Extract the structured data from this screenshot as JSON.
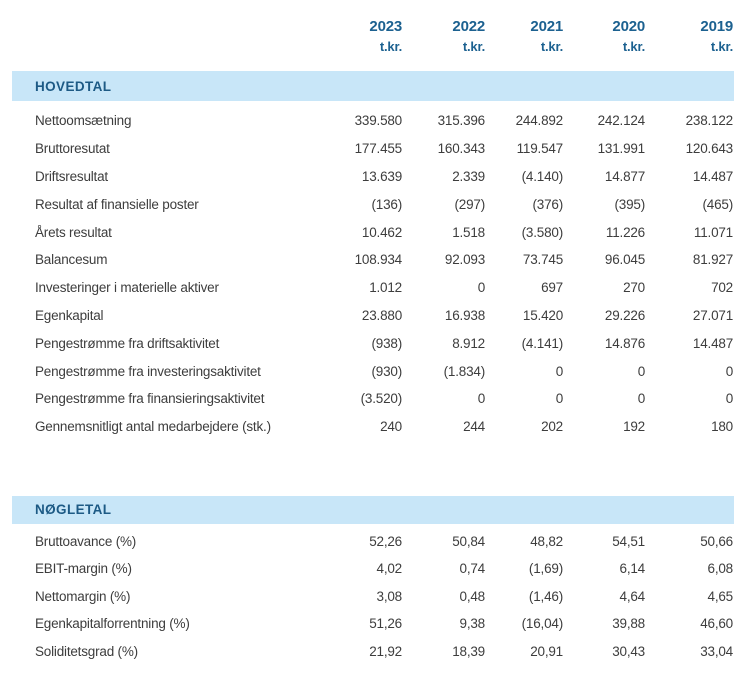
{
  "columns": [
    {
      "year": "2023",
      "unit": "t.kr."
    },
    {
      "year": "2022",
      "unit": "t.kr."
    },
    {
      "year": "2021",
      "unit": "t.kr."
    },
    {
      "year": "2020",
      "unit": "t.kr."
    },
    {
      "year": "2019",
      "unit": "t.kr."
    }
  ],
  "hovedtal": {
    "title": "HOVEDTAL",
    "rows": [
      {
        "label": "Nettoomsætning",
        "values": [
          "339.580",
          "315.396",
          "244.892",
          "242.124",
          "238.122"
        ]
      },
      {
        "label": "Bruttoresutat",
        "values": [
          "177.455",
          "160.343",
          "119.547",
          "131.991",
          "120.643"
        ]
      },
      {
        "label": "Driftsresultat",
        "values": [
          "13.639",
          "2.339",
          "(4.140)",
          "14.877",
          "14.487"
        ]
      },
      {
        "label": "Resultat af finansielle poster",
        "values": [
          "(136)",
          "(297)",
          "(376)",
          "(395)",
          "(465)"
        ]
      },
      {
        "label": "Årets resultat",
        "values": [
          "10.462",
          "1.518",
          "(3.580)",
          "11.226",
          "11.071"
        ]
      },
      {
        "label": "Balancesum",
        "values": [
          "108.934",
          "92.093",
          "73.745",
          "96.045",
          "81.927"
        ]
      },
      {
        "label": "Investeringer i materielle aktiver",
        "values": [
          "1.012",
          "0",
          "697",
          "270",
          "702"
        ]
      },
      {
        "label": "Egenkapital",
        "values": [
          "23.880",
          "16.938",
          "15.420",
          "29.226",
          "27.071"
        ]
      },
      {
        "label": "Pengestrømme fra driftsaktivitet",
        "values": [
          "(938)",
          "8.912",
          "(4.141)",
          "14.876",
          "14.487"
        ]
      },
      {
        "label": "Pengestrømme fra investeringsaktivitet",
        "values": [
          "(930)",
          "(1.834)",
          "0",
          "0",
          "0"
        ]
      },
      {
        "label": "Pengestrømme fra finansieringsaktivitet",
        "values": [
          "(3.520)",
          "0",
          "0",
          "0",
          "0"
        ]
      },
      {
        "label": "Gennemsnitligt antal medarbejdere (stk.)",
        "values": [
          "240",
          "244",
          "202",
          "192",
          "180"
        ]
      }
    ]
  },
  "noegletal": {
    "title": "NØGLETAL",
    "rows": [
      {
        "label": "Bruttoavance (%)",
        "values": [
          "52,26",
          "50,84",
          "48,82",
          "54,51",
          "50,66"
        ]
      },
      {
        "label": "EBIT-margin (%)",
        "values": [
          "4,02",
          "0,74",
          "(1,69)",
          "6,14",
          "6,08"
        ]
      },
      {
        "label": "Nettomargin (%)",
        "values": [
          "3,08",
          "0,48",
          "(1,46)",
          "4,64",
          "4,65"
        ]
      },
      {
        "label": "Egenkapitalforrentning (%)",
        "values": [
          "51,26",
          "9,38",
          "(16,04)",
          "39,88",
          "46,60"
        ]
      },
      {
        "label": "Soliditetsgrad (%)",
        "values": [
          "21,92",
          "18,39",
          "20,91",
          "30,43",
          "33,04"
        ]
      }
    ]
  },
  "colors": {
    "section_band": "#c8e6f8",
    "heading_blue": "#1c6190",
    "body_text": "#3d3d3d"
  }
}
